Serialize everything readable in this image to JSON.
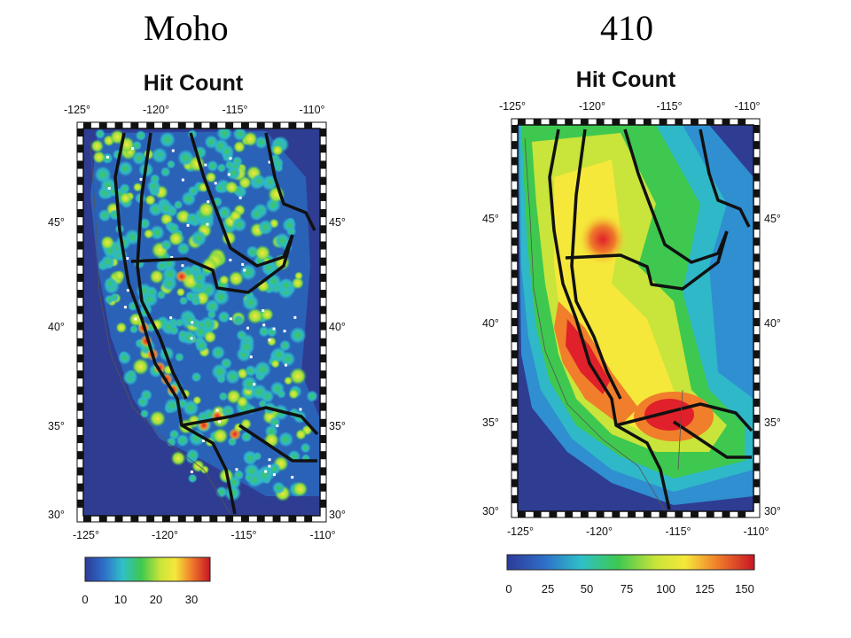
{
  "titles": {
    "left": "Moho",
    "right": "410"
  },
  "panels": [
    {
      "id": "moho",
      "title": "Hit Count",
      "lon_ticks": [
        "-125°",
        "-120°",
        "-115°",
        "-110°"
      ],
      "lat_ticks": [
        "45°",
        "40°",
        "35°",
        "30°"
      ],
      "lon_range": [
        -125,
        -110
      ],
      "lat_range": [
        30,
        49
      ],
      "colorbar": {
        "ticks": [
          "0",
          "10",
          "20",
          "30"
        ],
        "range": [
          0,
          35
        ]
      }
    },
    {
      "id": "410",
      "title": "Hit Count",
      "lon_ticks": [
        "-125°",
        "-120°",
        "-115°",
        "-110°"
      ],
      "lat_ticks": [
        "45°",
        "40°",
        "35°",
        "30°"
      ],
      "lon_range": [
        -125,
        -110
      ],
      "lat_range": [
        30,
        49
      ],
      "colorbar": {
        "ticks": [
          "0",
          "25",
          "50",
          "75",
          "100",
          "125",
          "150"
        ],
        "range": [
          0,
          155
        ]
      }
    }
  ],
  "colors": {
    "ocean": "#2e3d92",
    "low": "#2f4da3",
    "cyan": "#2fb8c8",
    "green": "#3ec84f",
    "yellow": "#f2e83a",
    "orange": "#f07e2a",
    "red": "#e0202a",
    "boundary": "#111111"
  }
}
